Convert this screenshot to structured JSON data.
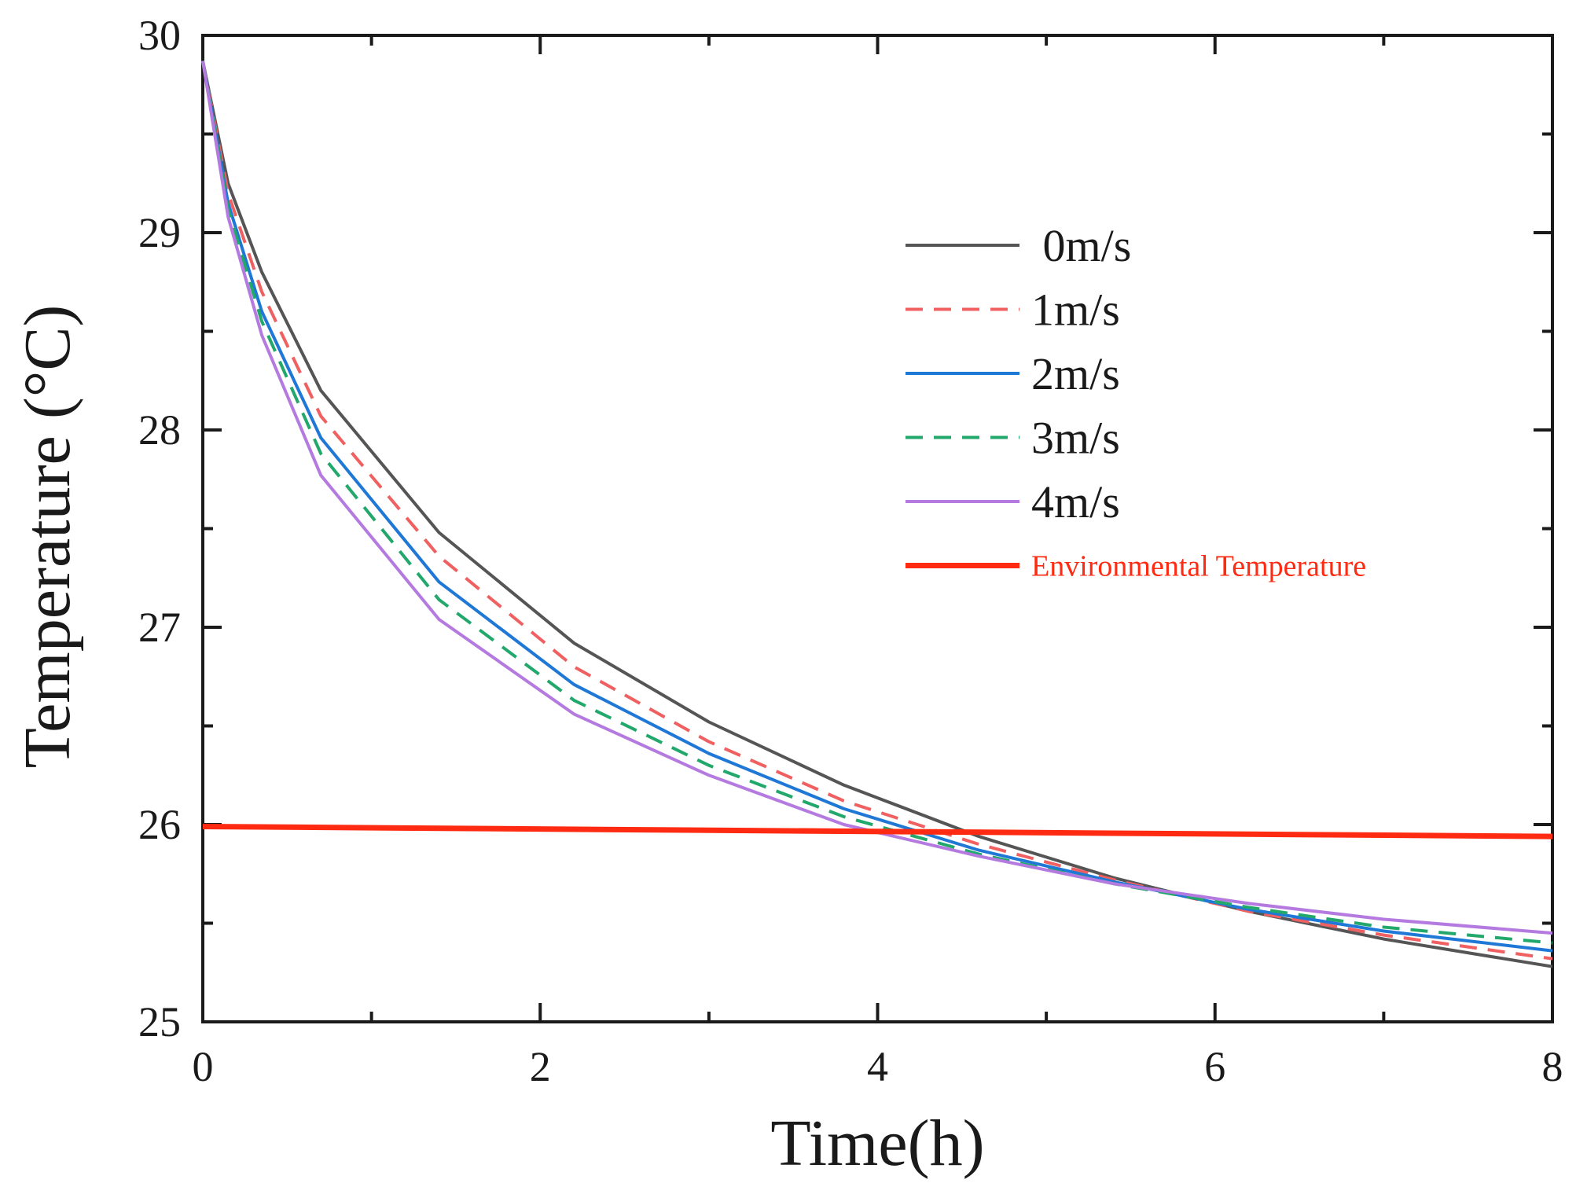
{
  "chart_data": {
    "type": "line",
    "title": "",
    "xlabel": "Time(h)",
    "ylabel": "Temperature (°C)",
    "xlim": [
      0,
      8
    ],
    "ylim": [
      25,
      30
    ],
    "xticks": [
      0,
      2,
      4,
      6,
      8
    ],
    "yticks": [
      25,
      26,
      27,
      28,
      29,
      30
    ],
    "x_tick_labels": [
      "0",
      "2",
      "4",
      "6",
      "8"
    ],
    "y_tick_labels": [
      "25",
      "26",
      "27",
      "28",
      "29",
      "30"
    ],
    "grid": false,
    "legend_position": "top-right",
    "series": [
      {
        "name": " 0m/s",
        "color": "#555555",
        "dash": "solid",
        "x": [
          0,
          0.15,
          0.35,
          0.7,
          1.4,
          2.2,
          3.0,
          3.8,
          4.6,
          5.4,
          6.2,
          7.0,
          8.0
        ],
        "values": [
          29.87,
          29.25,
          28.8,
          28.2,
          27.48,
          26.92,
          26.52,
          26.2,
          25.94,
          25.73,
          25.56,
          25.42,
          25.28
        ]
      },
      {
        "name": "1m/s",
        "color": "#f06060",
        "dash": "dashed",
        "x": [
          0,
          0.15,
          0.35,
          0.7,
          1.4,
          2.2,
          3.0,
          3.8,
          4.6,
          5.4,
          6.2,
          7.0,
          8.0
        ],
        "values": [
          29.87,
          29.2,
          28.7,
          28.07,
          27.36,
          26.8,
          26.42,
          26.12,
          25.9,
          25.72,
          25.56,
          25.44,
          25.32
        ]
      },
      {
        "name": "2m/s",
        "color": "#1f78d6",
        "dash": "solid",
        "x": [
          0,
          0.15,
          0.35,
          0.7,
          1.4,
          2.2,
          3.0,
          3.8,
          4.6,
          5.4,
          6.2,
          7.0,
          8.0
        ],
        "values": [
          29.87,
          29.15,
          28.6,
          27.96,
          27.23,
          26.71,
          26.36,
          26.08,
          25.87,
          25.71,
          25.57,
          25.46,
          25.36
        ]
      },
      {
        "name": "3m/s",
        "color": "#22a86b",
        "dash": "dashed",
        "x": [
          0,
          0.15,
          0.35,
          0.7,
          1.4,
          2.2,
          3.0,
          3.8,
          4.6,
          5.4,
          6.2,
          7.0,
          8.0
        ],
        "values": [
          29.87,
          29.12,
          28.55,
          27.88,
          27.14,
          26.63,
          26.3,
          26.04,
          25.85,
          25.7,
          25.58,
          25.48,
          25.4
        ]
      },
      {
        "name": "4m/s",
        "color": "#b47ae0",
        "dash": "solid",
        "x": [
          0,
          0.15,
          0.35,
          0.7,
          1.4,
          2.2,
          3.0,
          3.8,
          4.6,
          5.4,
          6.2,
          7.0,
          8.0
        ],
        "values": [
          29.87,
          29.08,
          28.48,
          27.77,
          27.04,
          26.56,
          26.25,
          26.0,
          25.84,
          25.7,
          25.6,
          25.52,
          25.45
        ]
      },
      {
        "name": "Environmental Temperature",
        "color": "#ff2a12",
        "dash": "solid",
        "x": [
          0,
          8
        ],
        "values": [
          25.99,
          25.94
        ]
      }
    ]
  }
}
